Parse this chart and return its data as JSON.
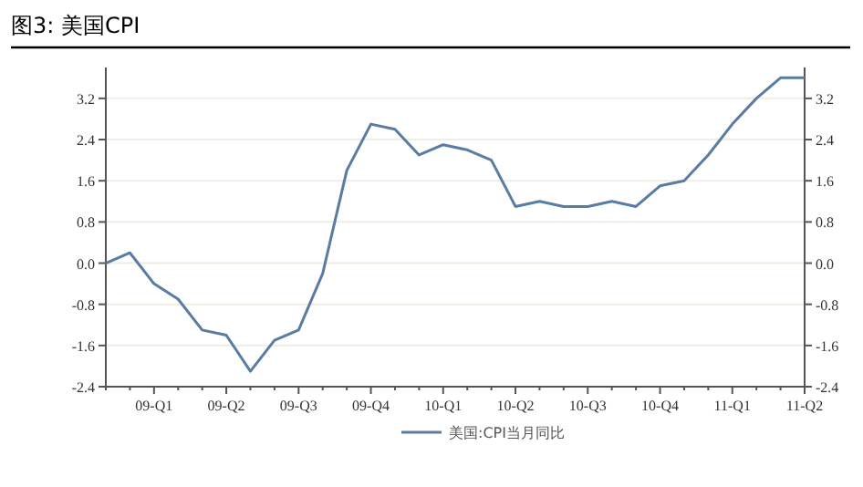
{
  "chart_data": {
    "type": "line",
    "title": "图3: 美国CPI",
    "categories": [
      null,
      null,
      "09-Q1",
      null,
      null,
      "09-Q2",
      null,
      null,
      "09-Q3",
      null,
      null,
      "09-Q4",
      null,
      null,
      "10-Q1",
      null,
      null,
      "10-Q2",
      null,
      null,
      "10-Q3",
      null,
      null,
      "10-Q4",
      null,
      null,
      "11-Q1",
      null,
      null,
      "11-Q2"
    ],
    "series": [
      {
        "name": "美国:CPI当月同比",
        "color": "#5a7ca3",
        "values": [
          0.0,
          0.2,
          -0.4,
          -0.7,
          -1.3,
          -1.4,
          -2.1,
          -1.5,
          -1.3,
          -0.2,
          1.8,
          2.7,
          2.6,
          2.1,
          2.3,
          2.2,
          2.0,
          1.1,
          1.2,
          1.1,
          1.1,
          1.2,
          1.1,
          1.5,
          1.6,
          2.1,
          2.7,
          3.2,
          3.6,
          3.6
        ]
      }
    ],
    "ylim": [
      -2.4,
      3.8
    ],
    "yticks": [
      -2.4,
      -1.6,
      -0.8,
      {
        "value": 0,
        "label": "0.0"
      },
      0.8,
      1.6,
      2.4,
      3.2
    ],
    "y2lim": [
      -2.4,
      3.8
    ],
    "y2ticks": [
      -2.4,
      -1.6,
      -0.8,
      {
        "value": 0,
        "label": "0.0"
      },
      0.8,
      1.6,
      2.4,
      3.2
    ],
    "grid": "y",
    "legend": "bottom"
  }
}
